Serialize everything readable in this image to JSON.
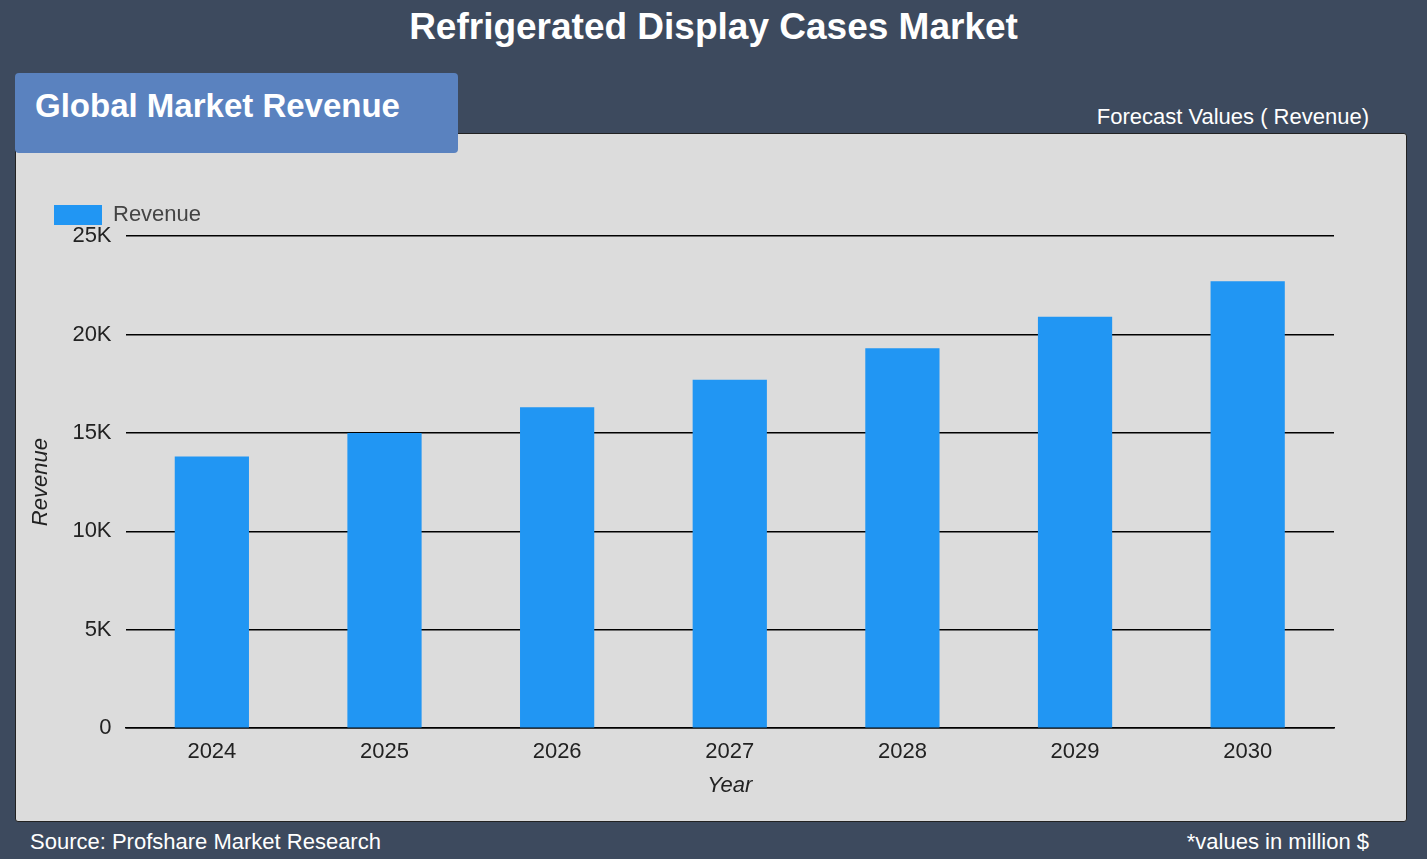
{
  "chart_data": {
    "type": "bar",
    "title": "Refrigerated Display Cases Market",
    "subtitle": "Global Market Revenue",
    "annotations": [
      "Forecast Values ( Revenue)",
      "Source: Profshare Market Research",
      "*values in million $"
    ],
    "x_label": "Year",
    "y_label": "Revenue",
    "categories": [
      "2024",
      "2025",
      "2026",
      "2027",
      "2028",
      "2029",
      "2030"
    ],
    "series": [
      {
        "name": "Revenue",
        "color": "#2196f3",
        "values": [
          13800,
          15000,
          16300,
          17700,
          19300,
          20900,
          22700
        ]
      }
    ],
    "ylim": [
      0,
      25000
    ],
    "yticks": [
      0,
      {
        "value": 5000,
        "label": "5K"
      },
      {
        "value": 10000,
        "label": "10K"
      },
      {
        "value": 15000,
        "label": "15K"
      },
      {
        "value": 20000,
        "label": "20K"
      },
      {
        "value": 25000,
        "label": "25K"
      }
    ],
    "grid": true,
    "legend": "top-left"
  }
}
